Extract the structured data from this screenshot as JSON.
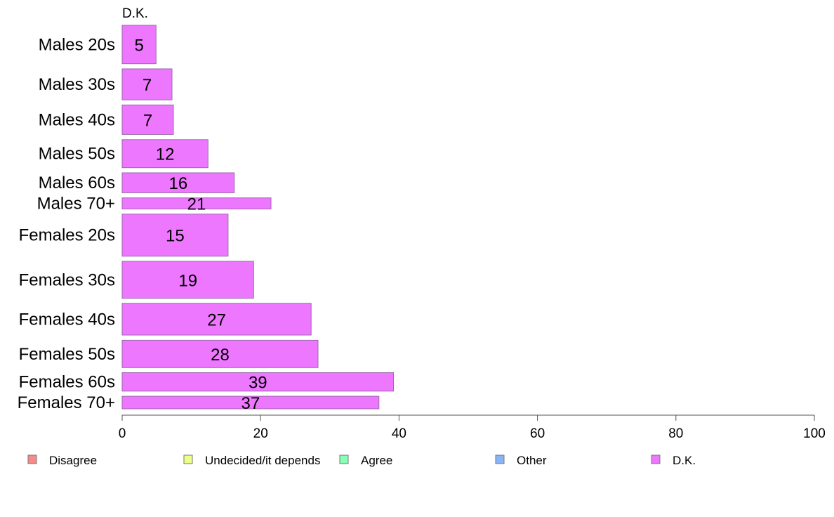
{
  "chart_data": {
    "type": "bar",
    "orientation": "horizontal",
    "title": "D.K.",
    "categories": [
      "Males 20s",
      "Males 30s",
      "Males 40s",
      "Males 50s",
      "Males 60s",
      "Males 70+",
      "Females 20s",
      "Females 30s",
      "Females 40s",
      "Females 50s",
      "Females 60s",
      "Females 70+"
    ],
    "values": [
      5,
      7,
      7,
      12,
      16,
      21,
      15,
      19,
      27,
      28,
      39,
      37
    ],
    "value_labels": [
      "5",
      "7",
      "7",
      "12",
      "16",
      "21",
      "15",
      "19",
      "27",
      "28",
      "39",
      "37"
    ],
    "bar_value_extent": [
      4.9,
      7.2,
      7.4,
      12.4,
      16.2,
      21.5,
      15.3,
      19,
      27.3,
      28.3,
      39.2,
      37.1
    ],
    "bar_relative_thickness": [
      52,
      42,
      40,
      38,
      27,
      15,
      57,
      50,
      43,
      37,
      25,
      17
    ],
    "xlim": [
      0,
      100
    ],
    "xticks": [
      "0",
      "20",
      "40",
      "60",
      "80",
      "100"
    ],
    "xlabel": "",
    "ylabel": "",
    "bar_color": "#EE77FF",
    "bar_stroke": "#9A6AAA",
    "grid": false,
    "legend_position": "bottom",
    "legend": [
      {
        "label": "Disagree",
        "color": "#F88A8A"
      },
      {
        "label": "Undecided/it depends",
        "color": "#EEFF88"
      },
      {
        "label": "Agree",
        "color": "#88FFB6"
      },
      {
        "label": "Other",
        "color": "#88B4F8"
      },
      {
        "label": "D.K.",
        "color": "#EE77FF"
      }
    ]
  }
}
